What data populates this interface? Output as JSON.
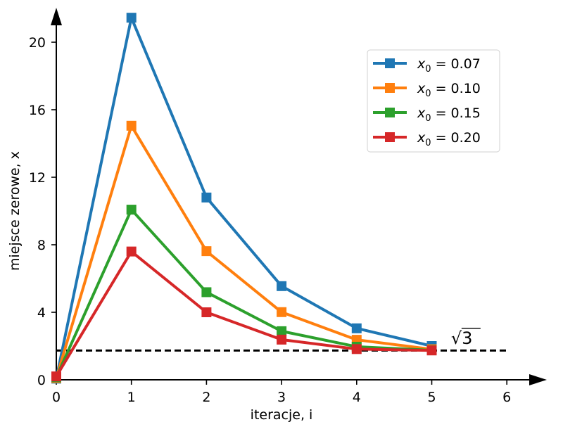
{
  "chart_data": {
    "type": "line",
    "title": "",
    "xlabel": "iteracje, i",
    "ylabel": "miejsce zerowe, x",
    "xlim": [
      0,
      6.5
    ],
    "ylim": [
      0,
      22
    ],
    "x_ticks": [
      0,
      1,
      2,
      3,
      4,
      5,
      6
    ],
    "y_ticks": [
      0,
      4,
      8,
      12,
      16,
      20
    ],
    "grid": false,
    "legend_position": "top-right",
    "x": [
      0,
      1,
      2,
      3,
      4,
      5
    ],
    "series": [
      {
        "name": "x0 = 0.07",
        "legend_var": "x",
        "legend_sub": "0",
        "legend_rest": " = 0.07",
        "color": "#1f77b4",
        "values": [
          0.07,
          21.45,
          10.8,
          5.55,
          3.05,
          2.0
        ]
      },
      {
        "name": "x0 = 0.10",
        "legend_var": "x",
        "legend_sub": "0",
        "legend_rest": " = 0.10",
        "color": "#ff7f0e",
        "values": [
          0.1,
          15.05,
          7.62,
          4.01,
          2.37,
          1.81
        ]
      },
      {
        "name": "x0 = 0.15",
        "legend_var": "x",
        "legend_sub": "0",
        "legend_rest": " = 0.15",
        "color": "#2ca02c",
        "values": [
          0.15,
          10.08,
          5.19,
          2.88,
          1.96,
          1.75
        ]
      },
      {
        "name": "x0 = 0.20",
        "legend_var": "x",
        "legend_sub": "0",
        "legend_rest": " = 0.20",
        "color": "#d62728",
        "values": [
          0.2,
          7.6,
          4.0,
          2.38,
          1.82,
          1.74
        ]
      }
    ],
    "reference_line": {
      "y": 1.732,
      "x_range": [
        0,
        6
      ],
      "style": "dashed",
      "color": "#000000"
    },
    "annotation": {
      "text": "3",
      "prefix": "√",
      "x": 5.2,
      "y": 2.05
    }
  }
}
